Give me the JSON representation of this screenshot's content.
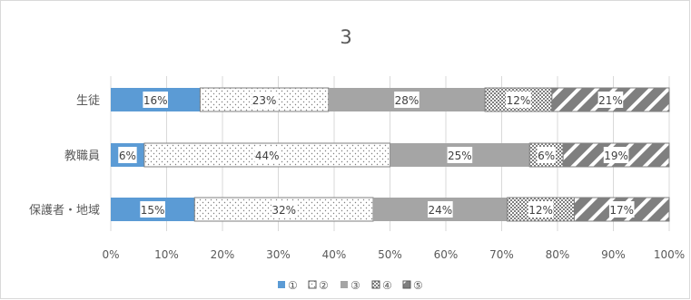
{
  "chart_data": {
    "type": "bar",
    "stacked": "100%",
    "orientation": "horizontal",
    "title": "3",
    "categories": [
      "生徒",
      "教職員",
      "保護者・地域"
    ],
    "series": [
      {
        "name": "①",
        "values": [
          16,
          6,
          15
        ],
        "labels": [
          "16%",
          "6%",
          "15%"
        ],
        "color": "#5b9bd5",
        "pattern": "solid"
      },
      {
        "name": "②",
        "values": [
          23,
          44,
          32
        ],
        "labels": [
          "23%",
          "44%",
          "32%"
        ],
        "color": "#7f7f7f",
        "pattern": "dots-on-white"
      },
      {
        "name": "③",
        "values": [
          28,
          25,
          24
        ],
        "labels": [
          "28%",
          "25%",
          "24%"
        ],
        "color": "#a5a5a5",
        "pattern": "solid"
      },
      {
        "name": "④",
        "values": [
          12,
          6,
          12
        ],
        "labels": [
          "12%",
          "6%",
          "12%"
        ],
        "color": "#7f7f7f",
        "pattern": "checker"
      },
      {
        "name": "⑤",
        "values": [
          21,
          19,
          17
        ],
        "labels": [
          "21%",
          "19%",
          "17%"
        ],
        "color": "#7f7f7f",
        "pattern": "wide-diagonal"
      }
    ],
    "xaxis": {
      "ticks": [
        "0%",
        "10%",
        "20%",
        "30%",
        "40%",
        "50%",
        "60%",
        "70%",
        "80%",
        "90%",
        "100%"
      ],
      "range": [
        0,
        100
      ]
    },
    "grid": true,
    "legend_position": "bottom"
  }
}
